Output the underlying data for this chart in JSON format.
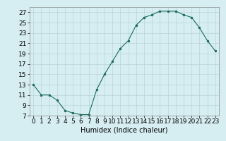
{
  "x": [
    0,
    1,
    2,
    3,
    4,
    5,
    6,
    7,
    8,
    9,
    10,
    11,
    12,
    13,
    14,
    15,
    16,
    17,
    18,
    19,
    20,
    21,
    22,
    23
  ],
  "y": [
    13,
    11,
    11,
    10,
    8,
    7.5,
    7.2,
    7.2,
    12,
    15,
    17.5,
    20,
    21.5,
    24.5,
    26,
    26.5,
    27.2,
    27.2,
    27.2,
    26.5,
    26,
    24,
    21.5,
    19.5
  ],
  "line_color": "#1a6b5a",
  "marker_color": "#1a6b5a",
  "bg_color": "#d6eef2",
  "grid_color": "#b8d4d8",
  "xlabel": "Humidex (Indice chaleur)",
  "ylim": [
    7,
    28
  ],
  "xlim": [
    -0.5,
    23.5
  ],
  "yticks": [
    7,
    9,
    11,
    13,
    15,
    17,
    19,
    21,
    23,
    25,
    27
  ],
  "xticks": [
    0,
    1,
    2,
    3,
    4,
    5,
    6,
    7,
    8,
    9,
    10,
    11,
    12,
    13,
    14,
    15,
    16,
    17,
    18,
    19,
    20,
    21,
    22,
    23
  ],
  "xlabel_fontsize": 7,
  "tick_fontsize": 6.5
}
